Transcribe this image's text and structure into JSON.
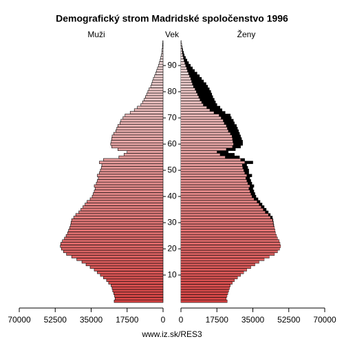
{
  "chart_data": {
    "type": "pyramid",
    "title": "Demografický strom Madridské spoločenstvo 1996",
    "left_label": "Muži",
    "center_label": "Vek",
    "right_label": "Ženy",
    "footer": "www.iz.sk/RES3",
    "colors": [
      "#d64545",
      "#f2e4e4"
    ],
    "excess_color": "#000000",
    "xlim": [
      0,
      70000
    ],
    "xticks": [
      0,
      17500,
      35000,
      52500,
      70000
    ],
    "ylim": [
      -0.5,
      99.5
    ],
    "yticks": [
      10,
      20,
      30,
      40,
      50,
      60,
      70,
      80,
      90
    ],
    "series": [
      {
        "name": "Muži",
        "values": [
          23800,
          23300,
          23600,
          24000,
          24500,
          24800,
          25300,
          26500,
          27500,
          29000,
          30500,
          32000,
          33500,
          35500,
          37500,
          39500,
          42000,
          44500,
          47000,
          48500,
          49500,
          50000,
          49800,
          49000,
          48000,
          47200,
          46500,
          46000,
          45500,
          45000,
          44800,
          44500,
          43500,
          42500,
          41000,
          40000,
          39000,
          38000,
          37000,
          35500,
          34500,
          34000,
          33500,
          33000,
          33500,
          32500,
          32000,
          31500,
          32000,
          31000,
          30500,
          30000,
          29800,
          31000,
          29000,
          21500,
          19000,
          17500,
          22000,
          25000,
          25500,
          25200,
          25000,
          24800,
          24000,
          23000,
          22500,
          22000,
          21000,
          20500,
          19500,
          18500,
          16000,
          14000,
          12500,
          10800,
          10000,
          9200,
          8600,
          8000,
          7400,
          6800,
          6000,
          5500,
          5100,
          4700,
          4100,
          3600,
          3100,
          2700,
          2200,
          1800,
          1400,
          1100,
          800,
          600,
          450,
          300,
          200,
          130
        ]
      },
      {
        "name": "Ženy",
        "values": [
          22500,
          22000,
          22400,
          22800,
          23200,
          23600,
          24000,
          25000,
          26000,
          27500,
          29000,
          30500,
          32000,
          34000,
          36000,
          38000,
          40500,
          43000,
          45500,
          47000,
          48000,
          48500,
          48200,
          47800,
          47000,
          46500,
          46000,
          45800,
          45500,
          45200,
          45000,
          44800,
          44500,
          43500,
          42500,
          41500,
          40500,
          39500,
          38500,
          37500,
          36500,
          36000,
          35500,
          35000,
          35500,
          34500,
          34000,
          33500,
          34500,
          33000,
          33000,
          32500,
          32000,
          35000,
          31000,
          28500,
          26000,
          23000,
          26500,
          29000,
          30000,
          30000,
          29500,
          29000,
          28500,
          28000,
          27500,
          27000,
          26000,
          25500,
          24500,
          24000,
          21500,
          20000,
          19000,
          17500,
          16800,
          16200,
          15500,
          15000,
          14500,
          13800,
          13000,
          12200,
          11000,
          10000,
          9000,
          7800,
          6600,
          5600,
          4600,
          3700,
          2900,
          2200,
          1600,
          1200,
          850,
          550,
          350,
          200
        ]
      }
    ]
  }
}
